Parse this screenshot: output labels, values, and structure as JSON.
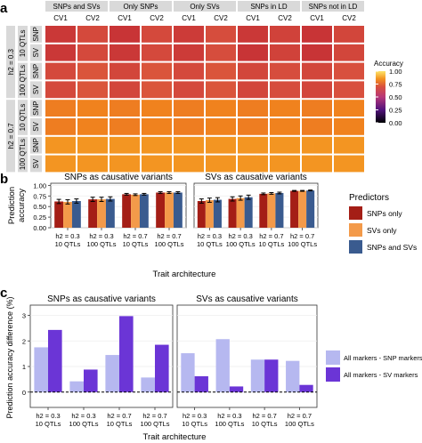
{
  "panel_labels": [
    "a",
    "b",
    "c"
  ],
  "colors": {
    "strip": "#d9d9d9",
    "panel_border": "#333333",
    "grid": "#eeeeee",
    "snps_only": "#a41e16",
    "svs_only": "#f39a4a",
    "snps_and_svs": "#3a5b8f",
    "snp_markers_diff": "#b6b8f0",
    "sv_markers_diff": "#6b35d6"
  },
  "chart_data": [
    {
      "type": "heatmap",
      "panel": "a",
      "column_groups": [
        "SNPs and SVs",
        "Only SNPs",
        "Only SVs",
        "SNPs in LD",
        "SNPs not in LD"
      ],
      "columns": [
        "CV1",
        "CV2"
      ],
      "row_groups": [
        {
          "label": "h2 = 0.3",
          "rows": [
            {
              "qtl": "10 QTLs",
              "cv": "SNP"
            },
            {
              "qtl": "10 QTLs",
              "cv": "SV"
            },
            {
              "qtl": "100 QTLs",
              "cv": "SNP"
            },
            {
              "qtl": "100 QTLs",
              "cv": "SV"
            }
          ]
        },
        {
          "label": "h2 = 0.7",
          "rows": [
            {
              "qtl": "10 QTLs",
              "cv": "SNP"
            },
            {
              "qtl": "10 QTLs",
              "cv": "SV"
            },
            {
              "qtl": "100 QTLs",
              "cv": "SNP"
            },
            {
              "qtl": "100 QTLs",
              "cv": "SV"
            }
          ]
        }
      ],
      "values": [
        [
          0.63,
          0.68,
          0.62,
          0.68,
          0.64,
          0.69,
          0.63,
          0.66,
          0.62,
          0.67
        ],
        [
          0.63,
          0.68,
          0.63,
          0.68,
          0.64,
          0.69,
          0.62,
          0.66,
          0.62,
          0.67
        ],
        [
          0.68,
          0.71,
          0.67,
          0.71,
          0.68,
          0.71,
          0.67,
          0.69,
          0.67,
          0.7
        ],
        [
          0.68,
          0.71,
          0.67,
          0.71,
          0.68,
          0.71,
          0.67,
          0.69,
          0.67,
          0.7
        ],
        [
          0.79,
          0.8,
          0.79,
          0.8,
          0.79,
          0.8,
          0.79,
          0.8,
          0.79,
          0.8
        ],
        [
          0.79,
          0.8,
          0.79,
          0.8,
          0.79,
          0.8,
          0.79,
          0.8,
          0.79,
          0.8
        ],
        [
          0.84,
          0.84,
          0.84,
          0.84,
          0.84,
          0.84,
          0.84,
          0.84,
          0.84,
          0.84
        ],
        [
          0.84,
          0.84,
          0.84,
          0.84,
          0.84,
          0.84,
          0.84,
          0.84,
          0.84,
          0.84
        ]
      ],
      "legend": {
        "title": "Accuracy",
        "ticks": [
          "1.00",
          "0.75",
          "0.50",
          "0.25",
          "0.00"
        ],
        "range": [
          0,
          1
        ]
      }
    },
    {
      "type": "bar",
      "panel": "b",
      "ylabel": "Prediction\naccuracy",
      "xlabel": "Trait architecture",
      "ylim": [
        0,
        1
      ],
      "yticks": [
        "0.00",
        "0.25",
        "0.50",
        "0.75",
        "1.00"
      ],
      "categories": [
        [
          "h2 = 0.3",
          "10 QTLs"
        ],
        [
          "h2 = 0.3",
          "100 QTLs"
        ],
        [
          "h2 = 0.7",
          "10 QTLs"
        ],
        [
          "h2 = 0.7",
          "100 QTLs"
        ]
      ],
      "legend": {
        "title": "Predictors",
        "items": [
          "SNPs only",
          "SVs only",
          "SNPs and SVs"
        ]
      },
      "facets": [
        {
          "title": "SNPs as causative variants",
          "series": [
            {
              "name": "SNPs only",
              "values": [
                0.62,
                0.67,
                0.79,
                0.83
              ],
              "err": [
                0.05,
                0.05,
                0.02,
                0.02
              ]
            },
            {
              "name": "SVs only",
              "values": [
                0.61,
                0.67,
                0.78,
                0.83
              ],
              "err": [
                0.05,
                0.05,
                0.02,
                0.02
              ]
            },
            {
              "name": "SNPs and SVs",
              "values": [
                0.63,
                0.68,
                0.79,
                0.83
              ],
              "err": [
                0.05,
                0.05,
                0.02,
                0.02
              ]
            }
          ]
        },
        {
          "title": "SVs as causative variants",
          "series": [
            {
              "name": "SNPs only",
              "values": [
                0.63,
                0.68,
                0.8,
                0.87
              ],
              "err": [
                0.05,
                0.05,
                0.02,
                0.01
              ]
            },
            {
              "name": "SVs only",
              "values": [
                0.65,
                0.7,
                0.81,
                0.87
              ],
              "err": [
                0.05,
                0.05,
                0.02,
                0.01
              ]
            },
            {
              "name": "SNPs and SVs",
              "values": [
                0.66,
                0.72,
                0.82,
                0.88
              ],
              "err": [
                0.05,
                0.05,
                0.02,
                0.01
              ]
            }
          ]
        }
      ]
    },
    {
      "type": "bar",
      "panel": "c",
      "ylabel": "Prediction accuracy difference (%)",
      "xlabel": "Trait architecture",
      "ylim": [
        -0.6,
        3.4
      ],
      "yticks": [
        "0",
        "1",
        "2",
        "3"
      ],
      "reference_line": 0,
      "categories": [
        [
          "h2 = 0.3",
          "10 QTLs"
        ],
        [
          "h2 = 0.3",
          "100 QTLs"
        ],
        [
          "h2 = 0.7",
          "10 QTLs"
        ],
        [
          "h2 = 0.7",
          "100 QTLs"
        ]
      ],
      "legend": {
        "items": [
          "All markers - SNP markers",
          "All markers - SV markers"
        ]
      },
      "facets": [
        {
          "title": "SNPs as causative variants",
          "series": [
            {
              "name": "All markers - SNP markers",
              "values": [
                1.75,
                0.42,
                1.45,
                0.57
              ]
            },
            {
              "name": "All markers - SV markers",
              "values": [
                2.43,
                0.88,
                2.97,
                1.85
              ]
            }
          ]
        },
        {
          "title": "SVs as causative variants",
          "series": [
            {
              "name": "All markers - SNP markers",
              "values": [
                1.52,
                2.07,
                1.27,
                1.22
              ]
            },
            {
              "name": "All markers - SV markers",
              "values": [
                0.62,
                0.22,
                1.27,
                0.28
              ]
            }
          ]
        }
      ]
    }
  ]
}
